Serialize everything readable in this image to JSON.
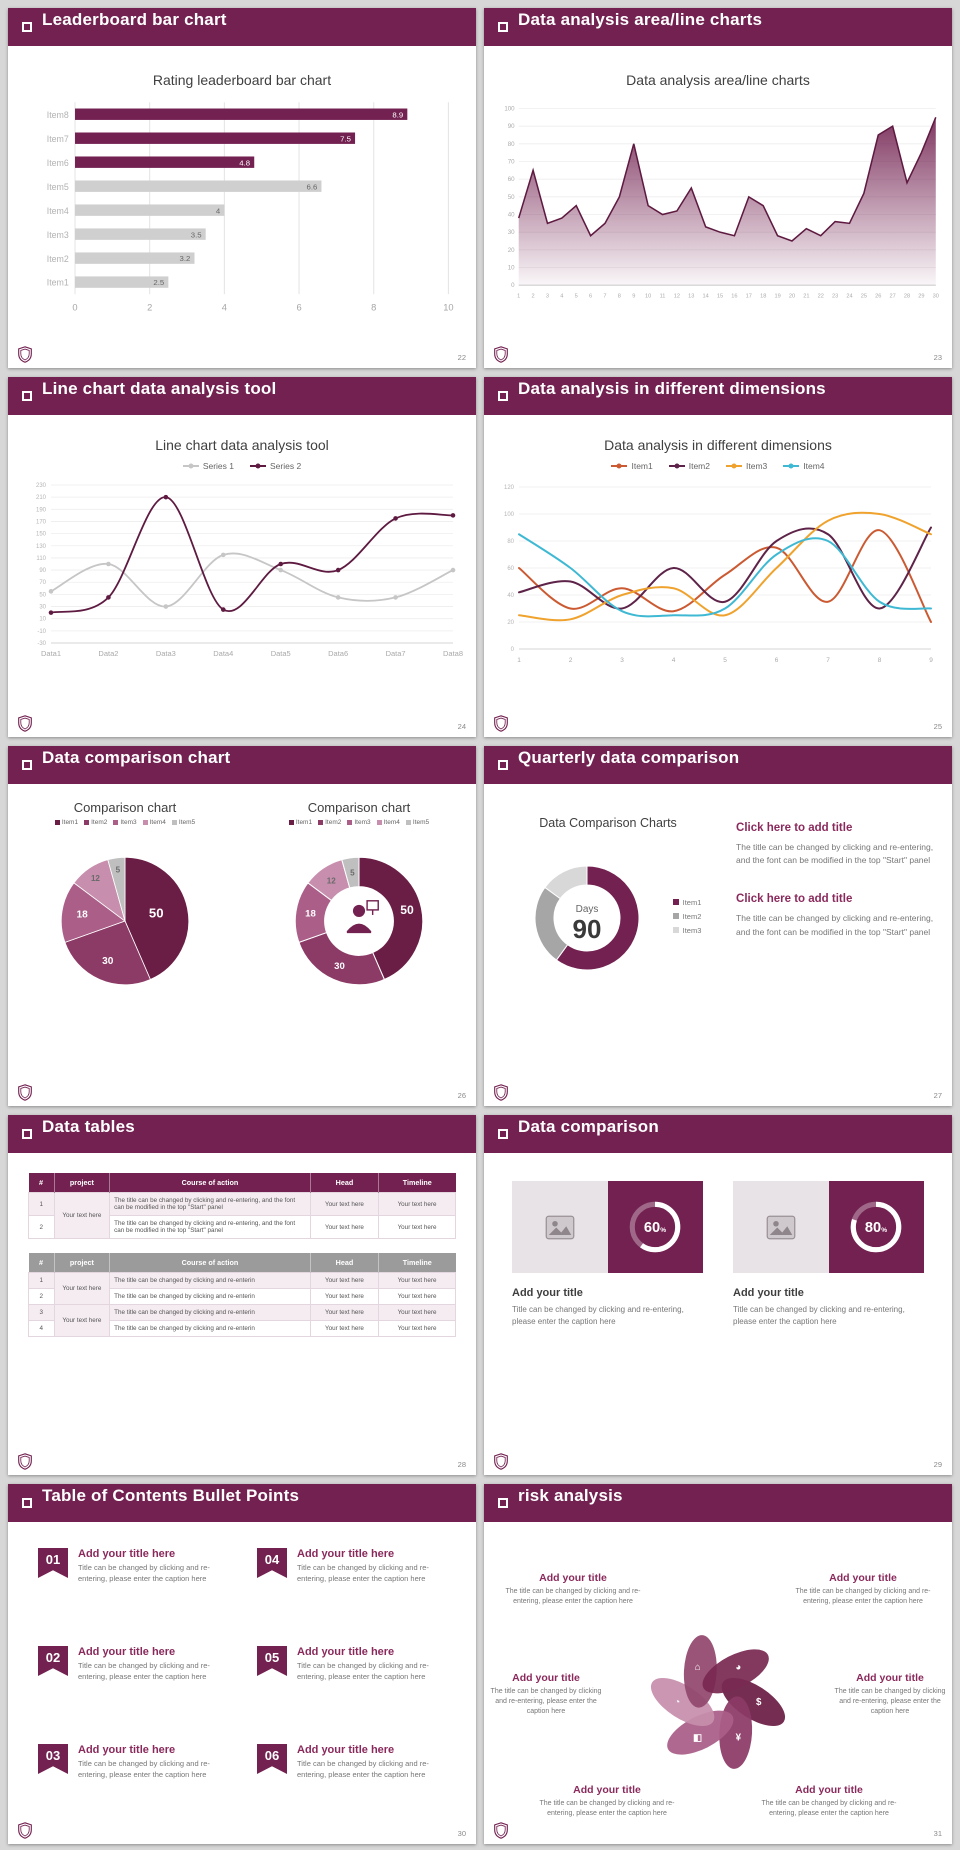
{
  "global": {
    "background": "#D7D7D7",
    "brand": "#722150"
  },
  "slides": [
    {
      "header": "Leaderboard bar chart",
      "page": "22",
      "chart_title": "Rating leaderboard bar chart"
    },
    {
      "header": "Data analysis area/line charts",
      "page": "23",
      "chart_title": "Data analysis area/line charts"
    },
    {
      "header": "Line chart data analysis tool",
      "page": "24",
      "chart_title": "Line chart data analysis tool"
    },
    {
      "header": "Data analysis in different dimensions",
      "page": "25",
      "chart_title": "Data analysis in different dimensions"
    },
    {
      "header": "Data comparison chart",
      "page": "26",
      "left_title": "Comparison chart",
      "right_title": "Comparison chart"
    },
    {
      "header": "Quarterly data comparison",
      "page": "27",
      "chart_title": "Data Comparison Charts",
      "blocks": [
        {
          "title": "Click here to add title",
          "body": "The title can be changed by clicking and re-entering, and the font can be modified in the top \"Start\" panel"
        },
        {
          "title": "Click here to add title",
          "body": "The title can be changed by clicking and re-entering, and the font can be modified in the top \"Start\" panel"
        }
      ]
    },
    {
      "header": "Data tables",
      "page": "28",
      "table1": {
        "headers": [
          "#",
          "project",
          "Course of action",
          "Head",
          "Timeline"
        ],
        "project_label": "Your text here",
        "rows": [
          {
            "num": "1",
            "action": "The title can be changed by clicking and re-entering, and the font can be modified in the top \"Start\" panel",
            "head": "Your text here",
            "timeline": "Your text here"
          },
          {
            "num": "2",
            "action": "The title can be changed by clicking and re-entering, and the font can be modified in the top \"Start\" panel",
            "head": "Your text here",
            "timeline": "Your text here"
          }
        ]
      },
      "table2": {
        "headers": [
          "#",
          "project",
          "Course of action",
          "Head",
          "Timeline"
        ],
        "project_label": "Your text here",
        "rows": [
          {
            "num": "1",
            "action": "The title can be changed by clicking and re-enterin",
            "head": "Your text here",
            "timeline": "Your text here"
          },
          {
            "num": "2",
            "action": "The title can be changed by clicking and re-enterin",
            "head": "Your text here",
            "timeline": "Your text here"
          },
          {
            "num": "3",
            "action": "The title can be changed by clicking and re-enterin",
            "head": "Your text here",
            "timeline": "Your text here"
          },
          {
            "num": "4",
            "action": "The title can be changed by clicking and re-enterin",
            "head": "Your text here",
            "timeline": "Your text here"
          }
        ]
      }
    },
    {
      "header": "Data comparison",
      "page": "29",
      "cards": [
        {
          "title": "Add your title",
          "caption": "Title can be changed by clicking and re-entering, please enter the caption here"
        },
        {
          "title": "Add your title",
          "caption": "Title can be changed by clicking and re-entering, please enter the caption here"
        }
      ]
    },
    {
      "header": "Table of Contents Bullet Points",
      "page": "30",
      "items": [
        {
          "num": "01",
          "title": "Add your title here",
          "caption": "Title can be changed by clicking and re-entering, please enter the caption here"
        },
        {
          "num": "02",
          "title": "Add your title here",
          "caption": "Title can be changed by clicking and re-entering, please enter the caption here"
        },
        {
          "num": "03",
          "title": "Add your title here",
          "caption": "Title can be changed by clicking and re-entering, please enter the caption here"
        },
        {
          "num": "04",
          "title": "Add your title here",
          "caption": "Title can be changed by clicking and re-entering, please enter the caption here"
        },
        {
          "num": "05",
          "title": "Add your title here",
          "caption": "Title can be changed by clicking and re-entering, please enter the caption here"
        },
        {
          "num": "06",
          "title": "Add your title here",
          "caption": "Title can be changed by clicking and re-entering, please enter the caption here"
        }
      ]
    },
    {
      "header": "risk analysis",
      "page": "31",
      "items": [
        {
          "title": "Add your title",
          "caption": "The title can be changed by clicking and re-entering, please enter the caption here"
        },
        {
          "title": "Add your title",
          "caption": "The title can be changed by clicking and re-entering, please enter the caption here"
        },
        {
          "title": "Add your title",
          "caption": "The title can be changed by clicking and re-entering, please enter the caption here"
        },
        {
          "title": "Add your title",
          "caption": "The title can be changed by clicking and re-entering, please enter the caption here"
        },
        {
          "title": "Add your title",
          "caption": "The title can be changed by clicking and re-entering, please enter the caption here"
        },
        {
          "title": "Add your title",
          "caption": "The title can be changed by clicking and re-entering, please enter the caption here"
        }
      ]
    }
  ],
  "chart_data": [
    {
      "id": "leaderboard",
      "type": "bar",
      "orientation": "horizontal",
      "title": "Rating leaderboard bar chart",
      "categories": [
        "Item8",
        "Item7",
        "Item6",
        "Item5",
        "Item4",
        "Item3",
        "Item2",
        "Item1"
      ],
      "values": [
        8.9,
        7.5,
        4.8,
        6.6,
        4,
        3.5,
        3.2,
        2.5
      ],
      "bar_colors": [
        "#722150",
        "#722150",
        "#722150",
        "#CFCFCF",
        "#CFCFCF",
        "#CFCFCF",
        "#CFCFCF",
        "#CFCFCF"
      ],
      "gray": "#CFCFCF",
      "xlim": [
        0,
        10
      ],
      "xticks": [
        0,
        2,
        4,
        6,
        8,
        10
      ]
    },
    {
      "id": "area",
      "type": "area",
      "title": "Data analysis area/line charts",
      "x": [
        1,
        2,
        3,
        4,
        5,
        6,
        7,
        8,
        9,
        10,
        11,
        12,
        13,
        14,
        15,
        16,
        17,
        18,
        19,
        20,
        21,
        22,
        23,
        24,
        25,
        26,
        27,
        28,
        29,
        30
      ],
      "values": [
        38,
        65,
        35,
        38,
        45,
        28,
        35,
        50,
        80,
        45,
        40,
        42,
        55,
        33,
        30,
        28,
        50,
        45,
        28,
        25,
        32,
        28,
        36,
        35,
        52,
        85,
        90,
        58,
        75,
        95
      ],
      "ylim": [
        0,
        100
      ],
      "ystep": 10,
      "line_color": "#5E1A40",
      "fill_color": "#722150"
    },
    {
      "id": "linetool",
      "type": "line",
      "title": "Line chart data analysis tool",
      "categories": [
        "Data1",
        "Data2",
        "Data3",
        "Data4",
        "Data5",
        "Data6",
        "Data7",
        "Data8"
      ],
      "ylim": [
        -30,
        230
      ],
      "ystep": 20,
      "markers": true,
      "lw": 1.8,
      "ml": 32,
      "xfs": 7.5,
      "series": [
        {
          "name": "Series 1",
          "color": "#C6C6C6",
          "values": [
            55,
            100,
            30,
            115,
            90,
            45,
            45,
            90
          ]
        },
        {
          "name": "Series 2",
          "color": "#5E1A40",
          "values": [
            20,
            45,
            210,
            25,
            100,
            90,
            175,
            180
          ]
        }
      ]
    },
    {
      "id": "dimensions",
      "type": "line",
      "title": "Data analysis in different dimensions",
      "x": [
        1,
        2,
        3,
        4,
        5,
        6,
        7,
        8,
        9
      ],
      "ylim": [
        0,
        120
      ],
      "ystep": 20,
      "markers": false,
      "lw": 2,
      "ml": 26,
      "xfs": 6.5,
      "series": [
        {
          "name": "Item1",
          "color": "#CB5A32",
          "values": [
            60,
            30,
            45,
            28,
            55,
            75,
            35,
            88,
            20
          ]
        },
        {
          "name": "Item2",
          "color": "#5E2348",
          "values": [
            42,
            50,
            30,
            60,
            35,
            80,
            85,
            30,
            90
          ]
        },
        {
          "name": "Item3",
          "color": "#EFA32E",
          "values": [
            25,
            22,
            40,
            45,
            25,
            60,
            95,
            100,
            85
          ]
        },
        {
          "name": "Item4",
          "color": "#3FB9D3",
          "values": [
            85,
            60,
            28,
            25,
            30,
            70,
            80,
            35,
            30
          ]
        }
      ]
    },
    {
      "id": "pie",
      "type": "pie",
      "title": "Comparison chart",
      "labels": [
        "Item1",
        "Item2",
        "Item3",
        "Item4",
        "Item5"
      ],
      "values": [
        50,
        30,
        18,
        12,
        5
      ],
      "colors": [
        "#6B1E45",
        "#8C3A66",
        "#AA5E88",
        "#C78FAD",
        "#BFBFBF"
      ]
    },
    {
      "id": "donut",
      "type": "donut",
      "title": "Comparison chart",
      "center_icon": "person-presenting-icon",
      "labels": [
        "Item1",
        "Item2",
        "Item3",
        "Item4",
        "Item5"
      ],
      "values": [
        50,
        30,
        18,
        12,
        5
      ],
      "colors": [
        "#6B1E45",
        "#8C3A66",
        "#AA5E88",
        "#C78FAD",
        "#BFBFBF"
      ]
    },
    {
      "id": "gauge",
      "type": "gauge",
      "title": "Data Comparison Charts",
      "labels": [
        "Item1",
        "Item2",
        "Item3"
      ],
      "values": [
        60,
        25,
        15
      ],
      "colors": [
        "#722150",
        "#A6A6A6",
        "#D8D8D8"
      ],
      "center_label": "Days",
      "center_value": "90"
    },
    {
      "id": "prog1",
      "type": "progress",
      "value": 60,
      "suffix": "%",
      "ring_color": "#FFFFFF"
    },
    {
      "id": "prog2",
      "type": "progress",
      "value": 80,
      "suffix": "%",
      "ring_color": "#FFFFFF"
    },
    {
      "id": "pinwheel",
      "type": "pinwheel",
      "colors": [
        "#6B1E45",
        "#8C3A66",
        "#AA5E88",
        "#C78FAD",
        "#93486E",
        "#7A2A52"
      ],
      "icons": [
        {
          "name": "money-bag-icon",
          "glyph": "$"
        },
        {
          "name": "coins-icon",
          "glyph": "¥"
        },
        {
          "name": "people-icon",
          "glyph": "◧"
        },
        {
          "name": "person-chart-icon",
          "glyph": "◔"
        },
        {
          "name": "building-icon",
          "glyph": "⌂"
        },
        {
          "name": "pie-chart-icon",
          "glyph": "◕"
        }
      ]
    }
  ]
}
